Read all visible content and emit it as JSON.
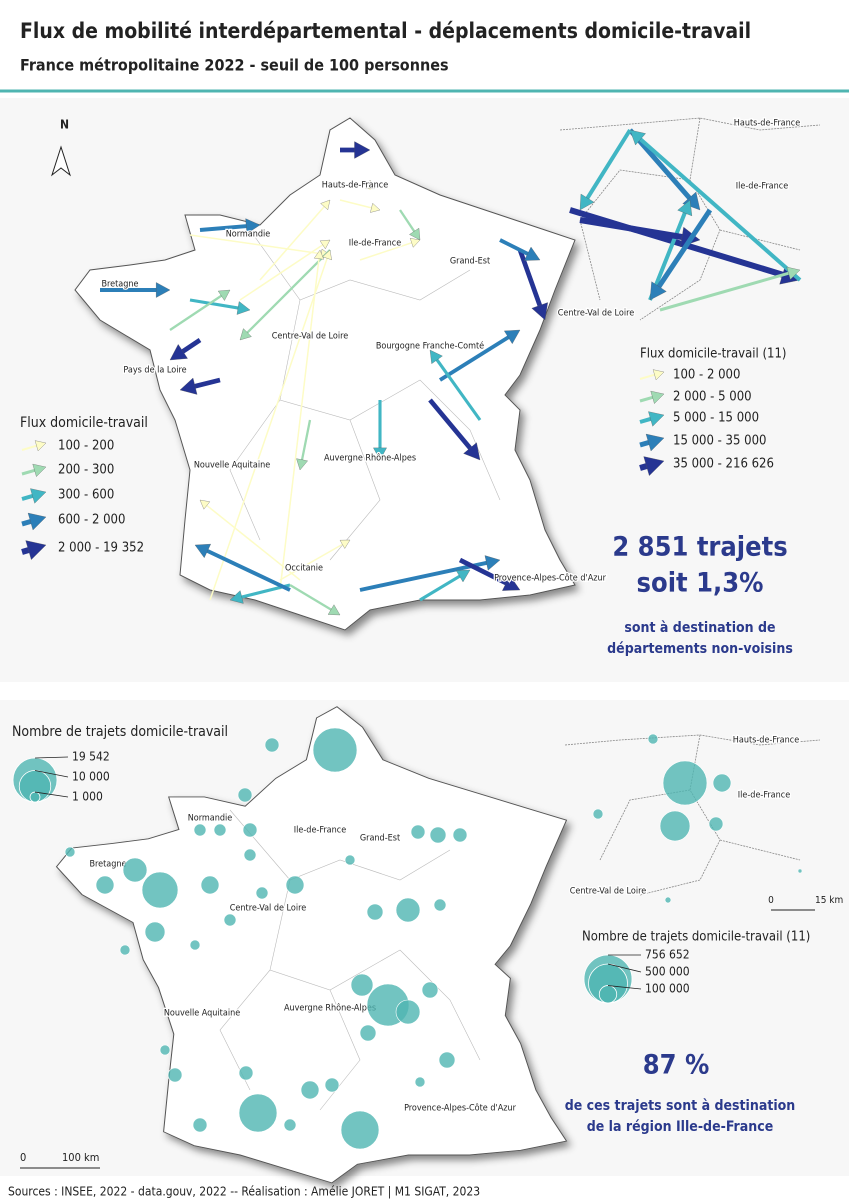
{
  "header": {
    "title": "Flux de mobilité interdépartemental - déplacements domicile-travail",
    "subtitle": "France métropolitaine 2022 - seuil de 100 personnes"
  },
  "map1": {
    "north": "N",
    "region_labels": [
      "Hauts-de-France",
      "Normandie",
      "Ile-de-France",
      "Grand-Est",
      "Bretagne",
      "Centre-Val de Loire",
      "Bourgogne Franche-Comté",
      "Pays de la Loire",
      "Nouvelle Aquitaine",
      "Auvergne Rhône-Alpes",
      "Occitanie",
      "Provence-Alpes-Côte d'Azur"
    ],
    "inset_labels": [
      "Hauts-de-France",
      "Ile-de-France",
      "Centre-Val de Loire"
    ],
    "legend": {
      "title": "Flux domicile-travail",
      "classes": [
        "100 - 200",
        "200 - 300",
        "300 - 600",
        "600 - 2 000",
        "2 000 - 19 352"
      ]
    },
    "inset_legend": {
      "title": "Flux domicile-travail (11)",
      "classes": [
        "100 - 2 000",
        "2 000 - 5 000",
        "5 000 - 15 000",
        "15 000 - 35 000",
        "35 000 - 216 626"
      ]
    },
    "colors": [
      "#fdfcc6",
      "#9fdab2",
      "#41b6c4",
      "#2c7fb8",
      "#253494"
    ],
    "stat": {
      "count": "2 851 trajets",
      "share": "soit 1,3%",
      "text": [
        "sont à destination de",
        "départements non-voisins"
      ]
    }
  },
  "map2": {
    "bubble_color": "#4fb5b1",
    "legend": {
      "title": "Nombre de trajets domicile-travail",
      "sizes": [
        {
          "value": 19542,
          "label": "19 542"
        },
        {
          "value": 10000,
          "label": "10 000"
        },
        {
          "value": 1000,
          "label": "1 000"
        }
      ]
    },
    "region_labels": [
      "Normandie",
      "Ile-de-France",
      "Grand-Est",
      "Bretagne",
      "Centre-Val de Loire",
      "Auvergne Rhône-Alpes",
      "Nouvelle Aquitaine",
      "Provence-Alpes-Côte d'Azur"
    ],
    "inset_labels": [
      "Hauts-de-France",
      "Ile-de-France",
      "Centre-Val de Loire"
    ],
    "inset_scale": [
      "0",
      "15 km"
    ],
    "inset_legend": {
      "title": "Nombre de trajets domicile-travail (11)",
      "sizes": [
        {
          "value": 756652,
          "label": "756 652"
        },
        {
          "value": 500000,
          "label": "500 000"
        },
        {
          "value": 100000,
          "label": "100 000"
        }
      ]
    },
    "stat": {
      "share": "87 %",
      "text": [
        "de ces trajets sont à destination",
        "de la région Ille-de-France"
      ]
    }
  },
  "scale": [
    "0",
    "100 km"
  ],
  "footer": "Sources : INSEE, 2022 - data.gouv, 2022 -- Réalisation : Amélie JORET | M1 SIGAT, 2023"
}
